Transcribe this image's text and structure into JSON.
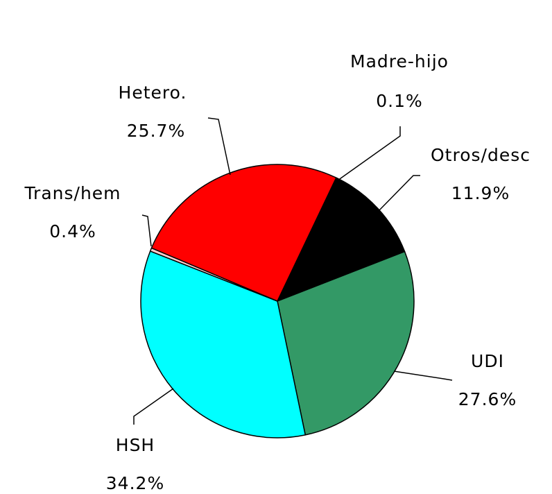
{
  "chart_data": {
    "type": "pie",
    "categories": [
      "Madre-hijo",
      "Otros/desc",
      "UDI",
      "HSH",
      "Trans/hem",
      "Hetero."
    ],
    "values": [
      0.1,
      11.9,
      27.6,
      34.2,
      0.4,
      25.7
    ],
    "value_labels": [
      "0.1%",
      "11.9%",
      "27.6%",
      "34.2%",
      "0.4%",
      "25.7%"
    ],
    "colors": [
      "#ffffff",
      "#000000",
      "#339966",
      "#00ffff",
      "#ffcccc",
      "#ff0000"
    ]
  }
}
